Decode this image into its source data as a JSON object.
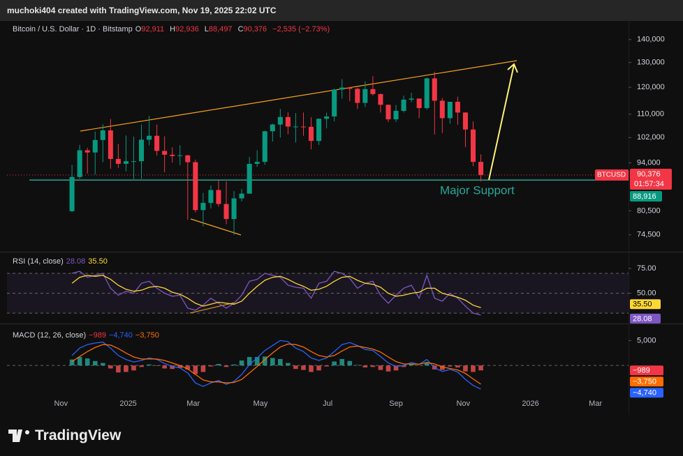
{
  "header": {
    "text": "muchoki404 created with TradingView.com, Nov 19, 2025 22:02 UTC"
  },
  "footer": {
    "brand": "TradingView"
  },
  "chart_data": [
    {
      "type": "candlestick",
      "title": "Bitcoin / U.S. Dollar · 1D · Bitstamp",
      "ohlc_readout": [
        {
          "key": "O",
          "value": "92,911"
        },
        {
          "key": "H",
          "value": "92,936"
        },
        {
          "key": "L",
          "value": "88,497"
        },
        {
          "key": "C",
          "value": "90,376"
        }
      ],
      "change": "−2,535 (−2.73%)",
      "log_scale": true,
      "ylim": [
        70700,
        148700
      ],
      "yticks": [
        {
          "value": 140000,
          "label": "140,000"
        },
        {
          "value": 130000,
          "label": "130,000"
        },
        {
          "value": 120000,
          "label": "120,000"
        },
        {
          "value": 110000,
          "label": "110,000"
        },
        {
          "value": 102000,
          "label": "102,000"
        },
        {
          "value": 94000,
          "label": "94,000"
        },
        {
          "value": 80500,
          "label": "80,500"
        },
        {
          "value": 74500,
          "label": "74,500"
        }
      ],
      "xlim": [
        "2024-09-13",
        "2026-03-31"
      ],
      "xticks": [
        {
          "value": "2024-11-01",
          "label": "Nov"
        },
        {
          "value": "2025-01-01",
          "label": "2025"
        },
        {
          "value": "2025-03-01",
          "label": "Mar"
        },
        {
          "value": "2025-05-01",
          "label": "May"
        },
        {
          "value": "2025-07-01",
          "label": "Jul"
        },
        {
          "value": "2025-09-01",
          "label": "Sep"
        },
        {
          "value": "2025-11-01",
          "label": "Nov"
        },
        {
          "value": "2026-01-01",
          "label": "2026"
        },
        {
          "value": "2026-03-01",
          "label": "Mar"
        }
      ],
      "up_color": "#089981",
      "down_color": "#f23645",
      "x": [
        "2024-11-11",
        "2024-11-18",
        "2024-11-25",
        "2024-12-02",
        "2024-12-09",
        "2024-12-16",
        "2024-12-23",
        "2024-12-30",
        "2025-01-06",
        "2025-01-13",
        "2025-01-20",
        "2025-01-27",
        "2025-02-03",
        "2025-02-10",
        "2025-02-17",
        "2025-02-24",
        "2025-03-03",
        "2025-03-10",
        "2025-03-17",
        "2025-03-24",
        "2025-03-31",
        "2025-04-07",
        "2025-04-14",
        "2025-04-21",
        "2025-04-28",
        "2025-05-05",
        "2025-05-12",
        "2025-05-19",
        "2025-05-26",
        "2025-06-02",
        "2025-06-09",
        "2025-06-16",
        "2025-06-23",
        "2025-06-30",
        "2025-07-07",
        "2025-07-14",
        "2025-07-21",
        "2025-07-28",
        "2025-08-04",
        "2025-08-11",
        "2025-08-18",
        "2025-08-25",
        "2025-09-01",
        "2025-09-08",
        "2025-09-15",
        "2025-09-22",
        "2025-09-29",
        "2025-10-06",
        "2025-10-13",
        "2025-10-20",
        "2025-10-27",
        "2025-11-03",
        "2025-11-10",
        "2025-11-17"
      ],
      "open": [
        80400,
        89800,
        97900,
        97200,
        101200,
        104400,
        95200,
        93700,
        94500,
        94500,
        101300,
        102600,
        97700,
        96500,
        96100,
        96300,
        94200,
        80700,
        82600,
        86100,
        82300,
        78400,
        83800,
        85100,
        93700,
        94300,
        104100,
        106400,
        109000,
        105700,
        105700,
        105600,
        100900,
        108400,
        109200,
        119100,
        119900,
        119400,
        114100,
        119300,
        117400,
        113400,
        108200,
        111200,
        115300,
        115700,
        112200,
        123500,
        114900,
        108600,
        114500,
        110600,
        104700,
        94300
      ],
      "high": [
        93400,
        99600,
        98700,
        104000,
        106500,
        108300,
        99900,
        102700,
        102300,
        106400,
        109400,
        106400,
        102400,
        98800,
        99500,
        96500,
        95000,
        85300,
        87400,
        88800,
        88500,
        85800,
        86400,
        95800,
        97900,
        104300,
        106700,
        111900,
        110700,
        110400,
        110600,
        108900,
        108500,
        110500,
        119500,
        123200,
        120200,
        119800,
        122300,
        124400,
        117600,
        113500,
        113300,
        116800,
        117900,
        115700,
        123900,
        126200,
        115900,
        114000,
        116400,
        110700,
        107500,
        96600
      ],
      "low": [
        80200,
        89300,
        90800,
        90500,
        94200,
        92200,
        92500,
        91400,
        89200,
        89300,
        99500,
        96200,
        91200,
        94100,
        93300,
        78200,
        80100,
        76600,
        81100,
        81600,
        77100,
        74500,
        83000,
        85100,
        92800,
        93400,
        100700,
        102000,
        103100,
        100400,
        102600,
        98200,
        99600,
        105100,
        107500,
        115700,
        114700,
        111900,
        112600,
        116800,
        110600,
        107300,
        107300,
        110600,
        114400,
        108600,
        111600,
        103000,
        103500,
        106700,
        106300,
        98900,
        93000,
        88500
      ],
      "close": [
        89800,
        97900,
        97200,
        101200,
        104400,
        95200,
        93700,
        94500,
        94500,
        101300,
        102600,
        97700,
        96500,
        96100,
        96300,
        94200,
        80700,
        82600,
        86100,
        82300,
        78400,
        83800,
        85100,
        93700,
        94300,
        104100,
        106400,
        109000,
        105700,
        105700,
        105600,
        100900,
        108400,
        109200,
        119100,
        119900,
        119400,
        114100,
        119300,
        117400,
        113400,
        108200,
        111200,
        115300,
        115700,
        112200,
        123500,
        114900,
        108600,
        114500,
        110600,
        104700,
        94300,
        90400
      ],
      "symbol": "BTCUSD",
      "last": {
        "value": 90376,
        "label": "90,376",
        "color": "#f23645"
      },
      "countdown": "01:57:34",
      "support": {
        "value": 88916,
        "label": "88,916",
        "color": "#089981",
        "text": "Major Support"
      }
    },
    {
      "type": "line",
      "title": "RSI (14, close)",
      "ylim": [
        21,
        91
      ],
      "yticks": [
        {
          "value": 75,
          "label": "75.00"
        },
        {
          "value": 50,
          "label": "50.00"
        }
      ],
      "levels": [
        70,
        50,
        30
      ],
      "series": [
        {
          "name": "RSI",
          "color": "#7e57c2",
          "values": [
            70,
            72,
            66,
            68,
            70,
            55,
            48,
            52,
            50,
            60,
            62,
            55,
            50,
            47,
            48,
            35,
            33,
            38,
            45,
            40,
            35,
            40,
            48,
            62,
            64,
            70,
            68,
            66,
            58,
            56,
            55,
            45,
            60,
            62,
            72,
            70,
            65,
            55,
            60,
            62,
            48,
            40,
            48,
            55,
            58,
            45,
            68,
            45,
            42,
            50,
            45,
            37,
            30,
            28.08
          ]
        },
        {
          "name": "RSI-based MA",
          "color": "#fdd835",
          "values": [
            60,
            66,
            68,
            67,
            68,
            64,
            58,
            54,
            52,
            53,
            56,
            57,
            55,
            51,
            49,
            45,
            40,
            37,
            39,
            41,
            40,
            39,
            42,
            50,
            57,
            63,
            66,
            67,
            64,
            60,
            57,
            53,
            54,
            57,
            62,
            66,
            67,
            63,
            60,
            59,
            56,
            50,
            47,
            48,
            50,
            51,
            55,
            55,
            50,
            48,
            46,
            43,
            38,
            35.5
          ]
        }
      ],
      "readout": [
        {
          "value": 28.08,
          "label": "28.08",
          "color": "#7e57c2"
        },
        {
          "value": 35.5,
          "label": "35.50",
          "color": "#fdd835"
        }
      ]
    },
    {
      "type": "macd",
      "title": "MACD (12, 26, close)",
      "ylim": [
        -5714,
        8140
      ],
      "yticks": [
        {
          "value": 5000,
          "label": "5,000"
        }
      ],
      "hist_colors": [
        "#26a69a",
        "#ef5350"
      ],
      "histogram": [
        1200,
        1700,
        1400,
        900,
        500,
        -600,
        -1400,
        -1300,
        -1000,
        -300,
        200,
        -100,
        -600,
        -700,
        -500,
        -800,
        -1700,
        -1300,
        -200,
        300,
        -300,
        200,
        1000,
        1700,
        1700,
        1800,
        1500,
        1300,
        500,
        -700,
        -900,
        -1300,
        -1000,
        -200,
        800,
        1300,
        900,
        100,
        -400,
        -300,
        -900,
        -1200,
        -1000,
        -300,
        300,
        -50,
        600,
        -800,
        -900,
        -200,
        -400,
        -1200,
        -1300,
        -989
      ],
      "series": [
        {
          "name": "MACD",
          "color": "#2962ff",
          "values": [
            2000,
            3500,
            4200,
            4500,
            4700,
            3500,
            2000,
            1200,
            700,
            1000,
            1500,
            1200,
            400,
            -200,
            -500,
            -1500,
            -3500,
            -4200,
            -3500,
            -3000,
            -3800,
            -3200,
            -1800,
            200,
            1500,
            3000,
            4000,
            5000,
            4800,
            3500,
            2800,
            1500,
            1000,
            1500,
            2800,
            4200,
            4600,
            4000,
            3200,
            3000,
            1800,
            500,
            -200,
            0,
            600,
            200,
            1200,
            -500,
            -1200,
            -800,
            -1300,
            -2800,
            -4000,
            -4740
          ]
        },
        {
          "name": "Signal",
          "color": "#ff6d00",
          "values": [
            800,
            1800,
            2800,
            3600,
            4200,
            4100,
            3400,
            2500,
            1700,
            1300,
            1300,
            1300,
            1000,
            500,
            0,
            -700,
            -1800,
            -2900,
            -3300,
            -3300,
            -3500,
            -3400,
            -2800,
            -1500,
            -200,
            1200,
            2500,
            3700,
            4300,
            4200,
            3700,
            2800,
            2000,
            1700,
            2000,
            2900,
            3700,
            3900,
            3600,
            3300,
            2700,
            1700,
            800,
            300,
            300,
            250,
            600,
            300,
            -300,
            -600,
            -900,
            -1600,
            -2700,
            -3750
          ]
        }
      ],
      "readout": [
        {
          "value": -989,
          "label": "−989",
          "color": "#f23645"
        },
        {
          "value": -4740,
          "label": "−4,740",
          "color": "#2962ff"
        },
        {
          "value": -3750,
          "label": "−3,750",
          "color": "#ff6d00"
        }
      ]
    }
  ]
}
